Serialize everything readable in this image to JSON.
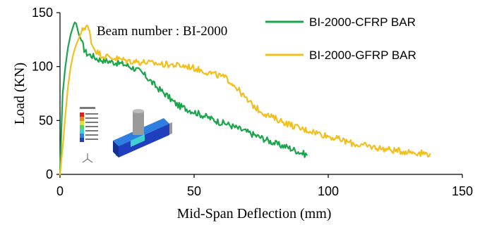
{
  "chart_data": {
    "type": "line",
    "title": "",
    "annotation": "Beam number : BI-2000",
    "xlabel": "Mid-Span Deflection (mm)",
    "ylabel": "Load (KN)",
    "xlim": [
      0,
      150
    ],
    "ylim": [
      0,
      150
    ],
    "xticks": [
      0,
      50,
      100,
      150
    ],
    "yticks": [
      0,
      50,
      100,
      150
    ],
    "grid": false,
    "legend_position": "top-right",
    "series": [
      {
        "name": "BI-2000-CFRP BAR",
        "color": "#1aa54a",
        "x": [
          0,
          0.5,
          1,
          2,
          3,
          4,
          5,
          5.5,
          6,
          7,
          8,
          9,
          10,
          12,
          14,
          16,
          18,
          20,
          22,
          24,
          26,
          28,
          30,
          32,
          34,
          36,
          38,
          40,
          42,
          44,
          46,
          48,
          50,
          52,
          54,
          56,
          58,
          60,
          62,
          64,
          66,
          68,
          70,
          72,
          74,
          76,
          78,
          80,
          82,
          84,
          86,
          88,
          90,
          92
        ],
        "y": [
          0,
          40,
          75,
          100,
          118,
          130,
          138,
          141,
          140,
          130,
          124,
          116,
          112,
          110,
          107,
          106,
          105,
          104,
          103,
          102,
          100,
          98,
          95,
          91,
          86,
          81,
          77,
          73,
          68,
          64,
          62,
          60,
          58,
          56,
          54,
          52,
          50,
          48,
          47,
          45,
          43,
          41,
          39,
          37,
          35,
          33,
          31,
          29,
          27,
          26,
          24,
          22,
          20,
          18
        ]
      },
      {
        "name": "BI-2000-GFRP BAR",
        "color": "#f2c01e",
        "x": [
          0,
          1,
          2,
          3,
          4,
          5,
          6,
          7,
          8,
          9,
          10,
          11,
          12,
          14,
          16,
          18,
          20,
          22,
          24,
          26,
          28,
          30,
          32,
          34,
          36,
          38,
          40,
          44,
          48,
          52,
          56,
          60,
          62,
          64,
          66,
          68,
          70,
          72,
          74,
          76,
          78,
          80,
          82,
          84,
          86,
          88,
          90,
          94,
          98,
          102,
          106,
          110,
          115,
          120,
          125,
          130,
          134,
          138
        ],
        "y": [
          0,
          25,
          55,
          82,
          100,
          112,
          120,
          126,
          132,
          136,
          138,
          132,
          120,
          113,
          110,
          109,
          108,
          107,
          106,
          105,
          105,
          104,
          104,
          103,
          103,
          102,
          102,
          101,
          100,
          97,
          94,
          91,
          89,
          85,
          80,
          74,
          68,
          64,
          60,
          57,
          54,
          52,
          50,
          48,
          46,
          44,
          42,
          40,
          37,
          34,
          31,
          28,
          26,
          24,
          22,
          21,
          20,
          19
        ]
      }
    ]
  },
  "inset_image": {
    "description_icon": "beam-model-thumbnail-icon",
    "colors": [
      "#1f3fbf",
      "#2f7fe0",
      "#3fd0d0",
      "#5fd060",
      "#e0e030",
      "#f08020",
      "#e02020",
      "#9a9a9a"
    ]
  }
}
